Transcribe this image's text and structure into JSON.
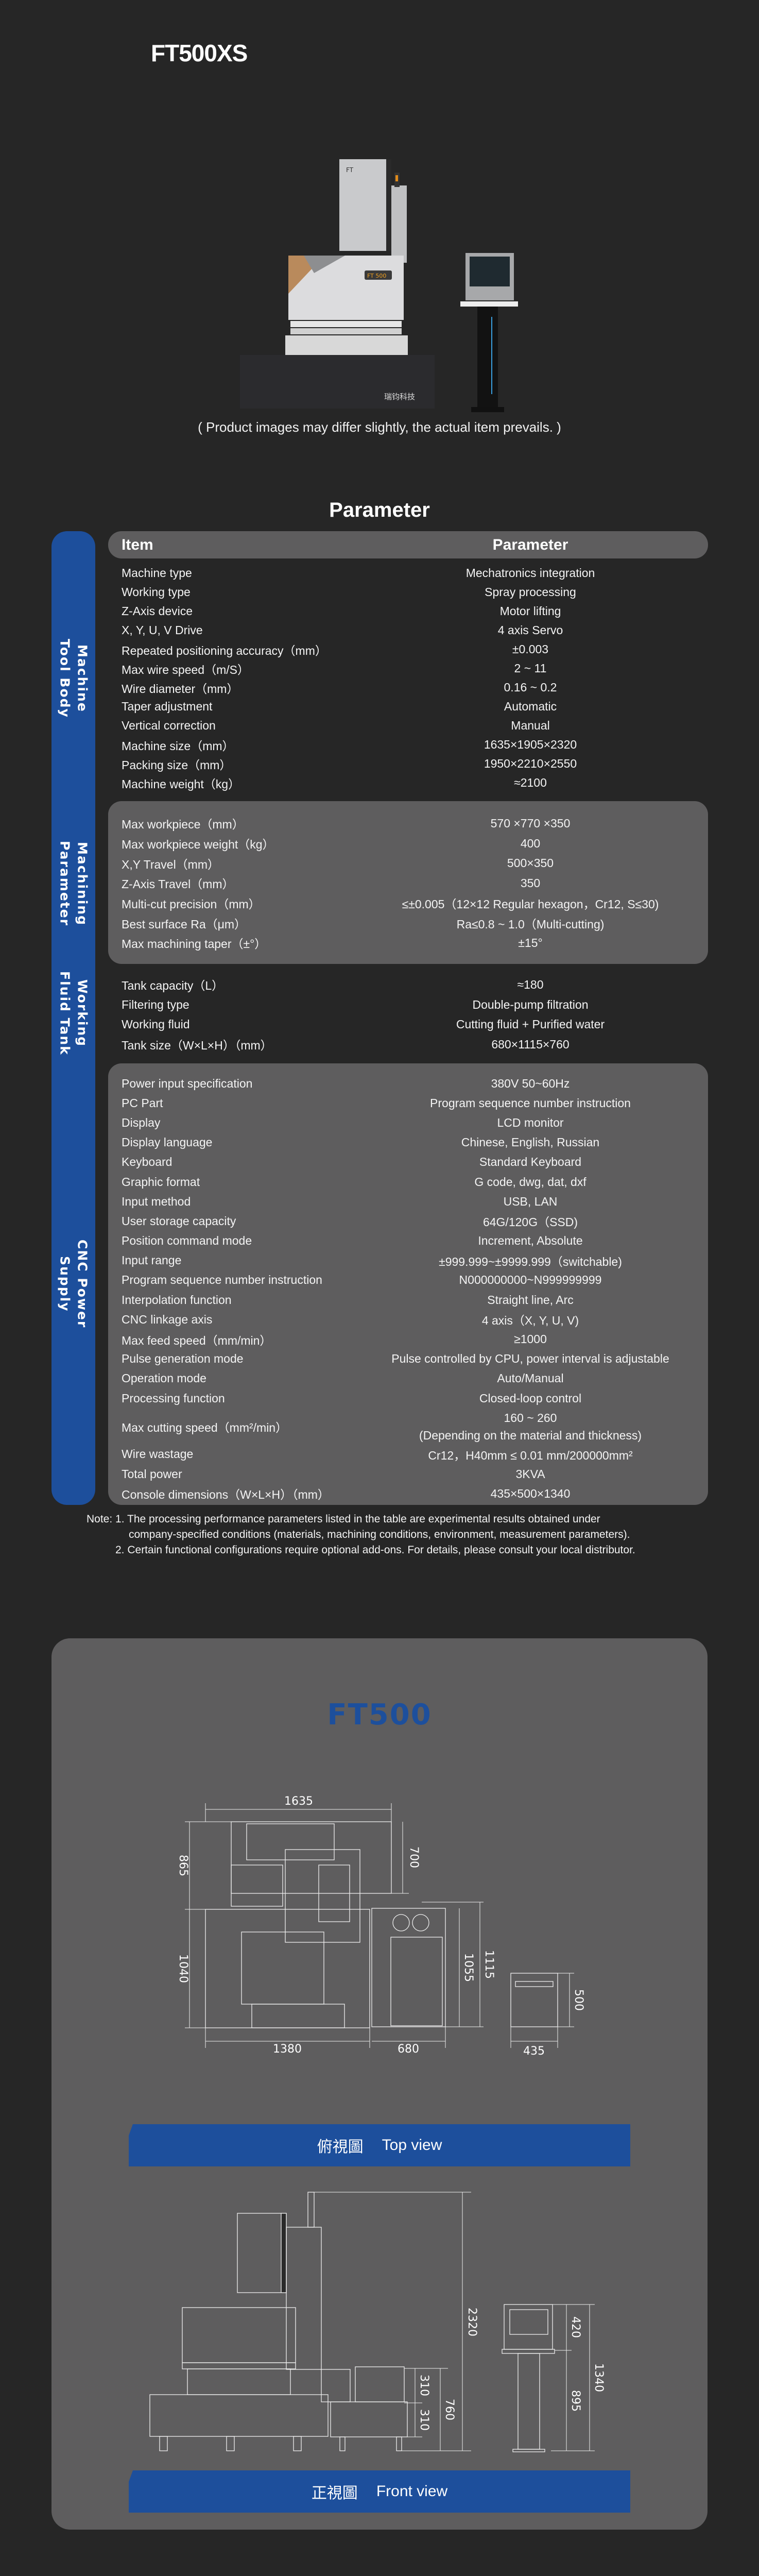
{
  "product_title": "FT500XS",
  "image_caption": "( Product images may differ slightly,  the actual item prevails. )",
  "photo_logo_text": "瑞钧科技",
  "photo_badge_text": "FT 500",
  "parameter_heading": "Parameter",
  "table_header": {
    "item": "Item",
    "parameter": "Parameter"
  },
  "groups": [
    {
      "label": "Machine Tool Body",
      "rows": [
        {
          "item": "Machine type",
          "value": "Mechatronics integration"
        },
        {
          "item": "Working type",
          "value": "Spray processing"
        },
        {
          "item": "Z-Axis device",
          "value": "Motor lifting"
        },
        {
          "item": "X, Y, U, V Drive",
          "value": "4 axis Servo"
        },
        {
          "item": "Repeated positioning accuracy（mm）",
          "value": "±0.003"
        },
        {
          "item": "Max wire speed（m/S）",
          "value": "2 ~ 11"
        },
        {
          "item": "Wire diameter（mm）",
          "value": "0.16 ~ 0.2"
        },
        {
          "item": "Taper adjustment",
          "value": "Automatic"
        },
        {
          "item": "Vertical correction",
          "value": "Manual"
        },
        {
          "item": "Machine size（mm）",
          "value": "1635×1905×2320"
        },
        {
          "item": "Packing size（mm）",
          "value": "1950×2210×2550"
        },
        {
          "item": "Machine weight（kg）",
          "value": "≈2100"
        }
      ]
    },
    {
      "label": "Machining Parameter",
      "rows": [
        {
          "item": "Max workpiece（mm）",
          "value": "570 ×770 ×350"
        },
        {
          "item": "Max workpiece weight（kg）",
          "value": "400"
        },
        {
          "item": "X,Y Travel（mm）",
          "value": "500×350"
        },
        {
          "item": "Z-Axis Travel（mm）",
          "value": "350"
        },
        {
          "item": "Multi-cut precision（mm）",
          "value": "≤±0.005（12×12 Regular hexagon，Cr12, S≤30)"
        },
        {
          "item": "Best surface Ra（μm）",
          "value": "Ra≤0.8 ~ 1.0（Multi-cutting)"
        },
        {
          "item": "Max machining taper（±°）",
          "value": "±15°"
        }
      ]
    },
    {
      "label": "Working Fluid Tank",
      "rows": [
        {
          "item": "Tank capacity（L）",
          "value": "≈180"
        },
        {
          "item": "Filtering type",
          "value": "Double-pump filtration"
        },
        {
          "item": "Working fluid",
          "value": "Cutting fluid + Purified water"
        },
        {
          "item": "Tank size（W×L×H）（mm）",
          "value": "680×1115×760"
        }
      ]
    },
    {
      "label": "CNC Power Supply",
      "rows": [
        {
          "item": "Power input specification",
          "value": "380V    50~60Hz"
        },
        {
          "item": "PC Part",
          "value": "Program sequence number instruction"
        },
        {
          "item": "Display",
          "value": "LCD monitor"
        },
        {
          "item": "Display language",
          "value": "Chinese, English, Russian"
        },
        {
          "item": "Keyboard",
          "value": "Standard Keyboard"
        },
        {
          "item": "Graphic format",
          "value": "G code, dwg, dat, dxf"
        },
        {
          "item": "Input method",
          "value": "USB, LAN"
        },
        {
          "item": "User storage capacity",
          "value": "64G/120G（SSD)"
        },
        {
          "item": "Position command mode",
          "value": "Increment, Absolute"
        },
        {
          "item": "Input range",
          "value": "±999.999~±9999.999（switchable)"
        },
        {
          "item": "Program sequence number instruction",
          "value": "N000000000~N999999999"
        },
        {
          "item": "Interpolation function",
          "value": "Straight line, Arc"
        },
        {
          "item": "CNC linkage axis",
          "value": "4 axis（X, Y, U, V)"
        },
        {
          "item": "Max feed speed（mm/min）",
          "value": "≥1000"
        },
        {
          "item": "Pulse generation mode",
          "value": "Pulse controlled by CPU, power interval is adjustable"
        },
        {
          "item": "Operation mode",
          "value": "Auto/Manual"
        },
        {
          "item": "Processing function",
          "value": "Closed-loop control"
        },
        {
          "item": "Max cutting speed（mm²/min）",
          "value": "160 ~ 260",
          "value_line2": "(Depending on the material and thickness)"
        },
        {
          "item": "Wire wastage",
          "value": "Cr12，H40mm ≤ 0.01 mm/200000mm²"
        },
        {
          "item": "Total power",
          "value": "3KVA"
        },
        {
          "item": "Console dimensions（W×L×H）（mm）",
          "value": "435×500×1340"
        }
      ]
    }
  ],
  "notes": [
    "Note: 1. The processing performance parameters listed in the table are experimental results obtained under",
    "company-specified conditions (materials, machining conditions, environment, measurement parameters).",
    "2. Certain functional configurations require optional add-ons. For details, please consult your local distributor."
  ],
  "drawing_title": "FT500",
  "top_view": {
    "label_cn": "俯視圖",
    "label_en": "Top view",
    "dims": {
      "overall_width": "1635",
      "upper_depth": "865",
      "lower_depth": "1040",
      "head_depth": "700",
      "tank_depth": "1055",
      "tank_total": "1115",
      "console_depth": "500",
      "machine_width": "1380",
      "tank_width": "680",
      "console_width": "435"
    }
  },
  "front_view": {
    "label_cn": "正視圖",
    "label_en": "Front view",
    "dims": {
      "total_height": "2320",
      "tank_upper": "310",
      "tank_lower": "310",
      "tank_height": "760",
      "console_head": "420",
      "console_stand": "895",
      "console_height": "1340"
    }
  },
  "colors": {
    "background": "#262626",
    "panel": "#5e5d5e",
    "accent_blue": "#1d4f9c",
    "text": "#ffffff"
  }
}
